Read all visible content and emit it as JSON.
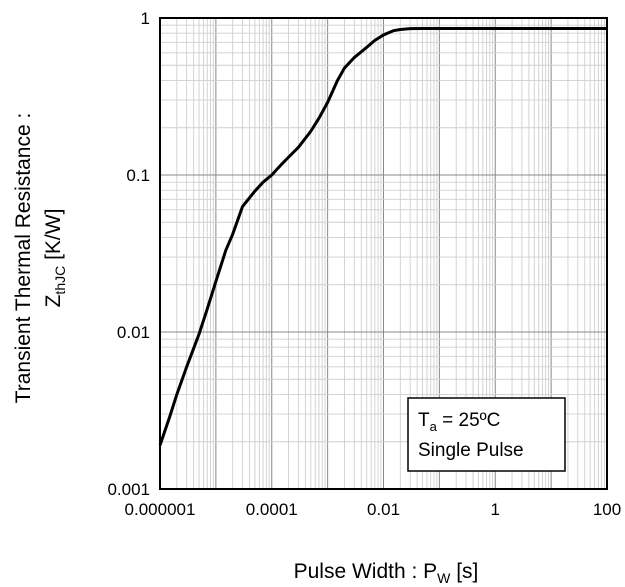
{
  "chart_data": {
    "type": "line",
    "title": "",
    "xscale": "log",
    "yscale": "log",
    "xlim": [
      1e-06,
      100
    ],
    "ylim": [
      0.001,
      1
    ],
    "grid": true,
    "x_tick_labels": [
      "0.000001",
      "0.0001",
      "0.01",
      "1",
      "100"
    ],
    "y_tick_labels": [
      "0.001",
      "0.01",
      "0.1",
      "1"
    ],
    "xlabel": {
      "main": "Pulse Width : P",
      "sub": "W",
      "unit": " [s]"
    },
    "ylabel": {
      "line1": "Transient Thermal Resistance :",
      "line2_main": "Z",
      "line2_sub": "thJC",
      "line2_unit": " [K/W]"
    },
    "legend": {
      "placement": "bottom-right",
      "line1_main": "T",
      "line1_sub": "a",
      "line1_rest": " = 25ºC",
      "line2": "Single Pulse"
    },
    "series": [
      {
        "x": [
          1e-06,
          1.5e-06,
          2e-06,
          3e-06,
          5e-06,
          7e-06,
          1e-05,
          1.5e-05,
          2e-05,
          3e-05,
          5e-05,
          7e-05,
          0.0001,
          0.00015,
          0.0002,
          0.0003,
          0.0005,
          0.0007,
          0.001,
          0.0015,
          0.002,
          0.003,
          0.005,
          0.007,
          0.01,
          0.015,
          0.02,
          0.03,
          0.05,
          0.07,
          0.1,
          0.2,
          0.5,
          1,
          10,
          100
        ],
        "values": [
          0.0019,
          0.0029,
          0.004,
          0.006,
          0.0097,
          0.014,
          0.021,
          0.033,
          0.042,
          0.063,
          0.079,
          0.09,
          0.1,
          0.117,
          0.13,
          0.15,
          0.19,
          0.23,
          0.29,
          0.4,
          0.48,
          0.56,
          0.65,
          0.72,
          0.78,
          0.83,
          0.845,
          0.855,
          0.857,
          0.858,
          0.858,
          0.858,
          0.858,
          0.858,
          0.858,
          0.858
        ]
      }
    ]
  }
}
